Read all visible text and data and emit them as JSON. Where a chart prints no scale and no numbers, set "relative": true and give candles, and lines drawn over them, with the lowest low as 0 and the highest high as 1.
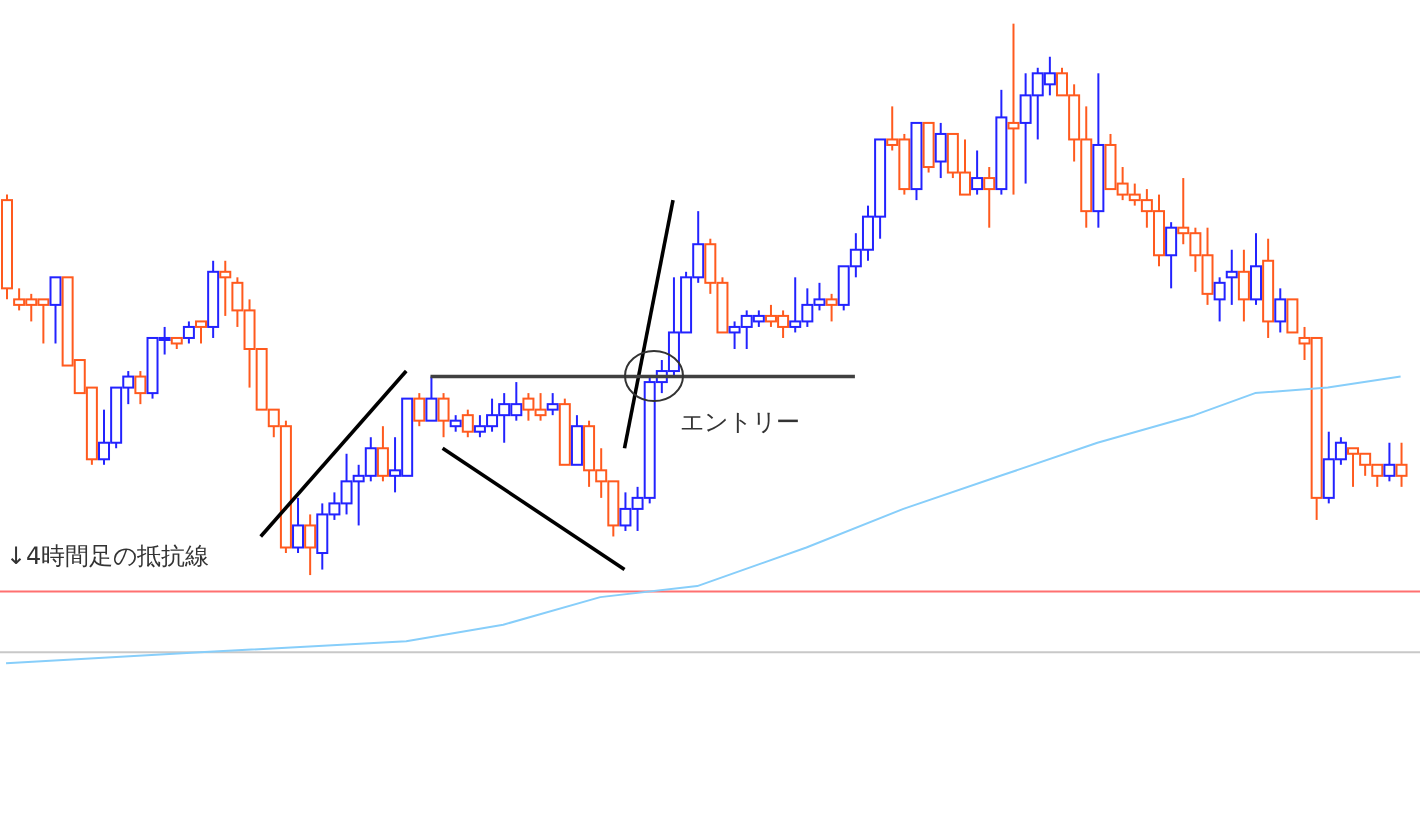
{
  "chart_data": {
    "type": "candlestick",
    "relative": true,
    "legend": false,
    "grid": false,
    "categories": [
      null,
      null,
      null,
      null,
      null,
      null,
      null,
      null,
      null,
      null,
      null,
      null,
      null,
      null,
      null,
      null,
      null,
      null,
      null,
      null,
      null,
      null,
      null,
      null,
      null,
      null,
      null,
      null,
      null,
      null,
      null,
      null,
      null,
      null,
      null,
      null,
      null,
      null,
      null,
      null,
      null,
      null,
      null,
      null,
      null,
      null,
      null,
      null,
      null,
      null,
      null,
      null,
      null,
      null,
      null,
      null,
      null,
      null,
      null,
      null,
      null,
      null,
      null,
      null,
      null,
      null,
      null,
      null,
      null,
      null,
      null,
      null,
      null,
      null,
      null,
      null,
      null,
      null,
      null,
      null,
      null,
      null,
      null,
      null,
      null,
      null,
      null,
      null,
      null,
      null,
      null,
      null,
      null,
      null,
      null,
      null,
      null,
      null,
      null,
      null,
      null,
      null,
      null,
      null,
      null,
      null,
      null,
      null,
      null,
      null,
      null,
      null,
      null,
      null,
      null,
      null
    ],
    "ohlc": [
      [
        0.68,
        0.69,
        0.5,
        0.52
      ],
      [
        0.5,
        0.52,
        0.48,
        0.49
      ],
      [
        0.5,
        0.51,
        0.46,
        0.49
      ],
      [
        0.5,
        0.5,
        0.42,
        0.49
      ],
      [
        0.49,
        0.54,
        0.42,
        0.54
      ],
      [
        0.54,
        0.54,
        0.38,
        0.38
      ],
      [
        0.39,
        0.39,
        0.33,
        0.33
      ],
      [
        0.34,
        0.34,
        0.2,
        0.21
      ],
      [
        0.21,
        0.3,
        0.2,
        0.24
      ],
      [
        0.24,
        0.34,
        0.23,
        0.34
      ],
      [
        0.34,
        0.37,
        0.31,
        0.36
      ],
      [
        0.36,
        0.37,
        0.31,
        0.33
      ],
      [
        0.33,
        0.43,
        0.32,
        0.43
      ],
      [
        0.43,
        0.45,
        0.4,
        0.43
      ],
      [
        0.43,
        0.43,
        0.41,
        0.42
      ],
      [
        0.43,
        0.46,
        0.42,
        0.45
      ],
      [
        0.46,
        0.46,
        0.42,
        0.45
      ],
      [
        0.45,
        0.57,
        0.43,
        0.55
      ],
      [
        0.55,
        0.57,
        0.47,
        0.54
      ],
      [
        0.53,
        0.54,
        0.45,
        0.48
      ],
      [
        0.48,
        0.5,
        0.34,
        0.41
      ],
      [
        0.41,
        0.41,
        0.3,
        0.3
      ],
      [
        0.3,
        0.3,
        0.25,
        0.27
      ],
      [
        0.27,
        0.28,
        0.04,
        0.05
      ],
      [
        0.05,
        0.14,
        0.04,
        0.09
      ],
      [
        0.09,
        0.11,
        0.0,
        0.05
      ],
      [
        0.04,
        0.13,
        0.01,
        0.11
      ],
      [
        0.11,
        0.15,
        0.1,
        0.13
      ],
      [
        0.13,
        0.22,
        0.11,
        0.17
      ],
      [
        0.17,
        0.2,
        0.09,
        0.18
      ],
      [
        0.18,
        0.25,
        0.17,
        0.23
      ],
      [
        0.23,
        0.27,
        0.17,
        0.18
      ],
      [
        0.18,
        0.25,
        0.15,
        0.19
      ],
      [
        0.18,
        0.32,
        0.18,
        0.32
      ],
      [
        0.32,
        0.33,
        0.27,
        0.28
      ],
      [
        0.28,
        0.36,
        0.28,
        0.32
      ],
      [
        0.32,
        0.33,
        0.25,
        0.28
      ],
      [
        0.27,
        0.29,
        0.26,
        0.28
      ],
      [
        0.29,
        0.3,
        0.25,
        0.26
      ],
      [
        0.26,
        0.29,
        0.25,
        0.27
      ],
      [
        0.27,
        0.32,
        0.26,
        0.29
      ],
      [
        0.29,
        0.33,
        0.24,
        0.31
      ],
      [
        0.29,
        0.35,
        0.28,
        0.31
      ],
      [
        0.32,
        0.33,
        0.28,
        0.3
      ],
      [
        0.3,
        0.33,
        0.28,
        0.29
      ],
      [
        0.3,
        0.33,
        0.29,
        0.31
      ],
      [
        0.31,
        0.32,
        0.2,
        0.2
      ],
      [
        0.2,
        0.29,
        0.2,
        0.27
      ],
      [
        0.27,
        0.28,
        0.16,
        0.19
      ],
      [
        0.19,
        0.23,
        0.14,
        0.17
      ],
      [
        0.17,
        0.17,
        0.07,
        0.09
      ],
      [
        0.09,
        0.15,
        0.08,
        0.12
      ],
      [
        0.12,
        0.16,
        0.08,
        0.14
      ],
      [
        0.14,
        0.36,
        0.13,
        0.35
      ],
      [
        0.35,
        0.39,
        0.33,
        0.37
      ],
      [
        0.37,
        0.54,
        0.36,
        0.44
      ],
      [
        0.44,
        0.55,
        0.44,
        0.54
      ],
      [
        0.54,
        0.66,
        0.53,
        0.6
      ],
      [
        0.6,
        0.61,
        0.51,
        0.53
      ],
      [
        0.53,
        0.54,
        0.44,
        0.44
      ],
      [
        0.44,
        0.46,
        0.41,
        0.45
      ],
      [
        0.45,
        0.48,
        0.41,
        0.47
      ],
      [
        0.46,
        0.48,
        0.45,
        0.47
      ],
      [
        0.47,
        0.49,
        0.45,
        0.46
      ],
      [
        0.47,
        0.48,
        0.43,
        0.45
      ],
      [
        0.45,
        0.54,
        0.44,
        0.46
      ],
      [
        0.46,
        0.52,
        0.45,
        0.49
      ],
      [
        0.49,
        0.53,
        0.48,
        0.5
      ],
      [
        0.5,
        0.51,
        0.46,
        0.49
      ],
      [
        0.49,
        0.56,
        0.48,
        0.56
      ],
      [
        0.56,
        0.62,
        0.54,
        0.59
      ],
      [
        0.59,
        0.67,
        0.57,
        0.65
      ],
      [
        0.65,
        0.79,
        0.61,
        0.79
      ],
      [
        0.79,
        0.85,
        0.77,
        0.78
      ],
      [
        0.79,
        0.8,
        0.69,
        0.7
      ],
      [
        0.7,
        0.82,
        0.68,
        0.82
      ],
      [
        0.82,
        0.82,
        0.73,
        0.74
      ],
      [
        0.75,
        0.82,
        0.72,
        0.8
      ],
      [
        0.8,
        0.8,
        0.72,
        0.73
      ],
      [
        0.73,
        0.79,
        0.69,
        0.69
      ],
      [
        0.7,
        0.77,
        0.69,
        0.72
      ],
      [
        0.72,
        0.74,
        0.63,
        0.7
      ],
      [
        0.7,
        0.88,
        0.69,
        0.83
      ],
      [
        0.82,
        1.0,
        0.69,
        0.81
      ],
      [
        0.82,
        0.91,
        0.71,
        0.87
      ],
      [
        0.87,
        0.92,
        0.79,
        0.91
      ],
      [
        0.89,
        0.94,
        0.87,
        0.91
      ],
      [
        0.91,
        0.92,
        0.87,
        0.87
      ],
      [
        0.87,
        0.89,
        0.75,
        0.79
      ],
      [
        0.79,
        0.85,
        0.63,
        0.66
      ],
      [
        0.66,
        0.91,
        0.63,
        0.78
      ],
      [
        0.78,
        0.8,
        0.7,
        0.7
      ],
      [
        0.71,
        0.74,
        0.68,
        0.69
      ],
      [
        0.69,
        0.71,
        0.67,
        0.68
      ],
      [
        0.68,
        0.7,
        0.63,
        0.66
      ],
      [
        0.66,
        0.69,
        0.56,
        0.58
      ],
      [
        0.58,
        0.64,
        0.52,
        0.63
      ],
      [
        0.63,
        0.72,
        0.6,
        0.62
      ],
      [
        0.62,
        0.63,
        0.55,
        0.58
      ],
      [
        0.58,
        0.63,
        0.49,
        0.51
      ],
      [
        0.5,
        0.54,
        0.46,
        0.53
      ],
      [
        0.54,
        0.59,
        0.49,
        0.55
      ],
      [
        0.55,
        0.59,
        0.46,
        0.5
      ],
      [
        0.5,
        0.62,
        0.49,
        0.56
      ],
      [
        0.57,
        0.61,
        0.43,
        0.46
      ],
      [
        0.46,
        0.52,
        0.44,
        0.5
      ],
      [
        0.5,
        0.5,
        0.44,
        0.44
      ],
      [
        0.43,
        0.45,
        0.39,
        0.42
      ],
      [
        0.43,
        0.43,
        0.1,
        0.14
      ],
      [
        0.14,
        0.26,
        0.13,
        0.21
      ],
      [
        0.21,
        0.25,
        0.2,
        0.24
      ],
      [
        0.23,
        0.23,
        0.16,
        0.22
      ],
      [
        0.22,
        0.22,
        0.18,
        0.2
      ],
      [
        0.2,
        0.2,
        0.16,
        0.18
      ],
      [
        0.18,
        0.24,
        0.17,
        0.2
      ],
      [
        0.2,
        0.24,
        0.16,
        0.18
      ]
    ],
    "colors": [
      "#ff5a1e",
      "#ff5a1e",
      "#ff5a1e",
      "#ff5a1e",
      "#2323ff",
      "#ff5a1e",
      "#ff5a1e",
      "#ff5a1e",
      "#2323ff",
      "#2323ff",
      "#2323ff",
      "#ff5a1e",
      "#2323ff",
      "#2323ff",
      "#ff5a1e",
      "#2323ff",
      "#ff5a1e",
      "#2323ff",
      "#ff5a1e",
      "#ff5a1e",
      "#ff5a1e",
      "#ff5a1e",
      "#ff5a1e",
      "#ff5a1e",
      "#2323ff",
      "#ff5a1e",
      "#2323ff",
      "#2323ff",
      "#2323ff",
      "#2323ff",
      "#2323ff",
      "#ff5a1e",
      "#2323ff",
      "#2323ff",
      "#ff5a1e",
      "#2323ff",
      "#ff5a1e",
      "#2323ff",
      "#ff5a1e",
      "#2323ff",
      "#2323ff",
      "#2323ff",
      "#2323ff",
      "#ff5a1e",
      "#ff5a1e",
      "#2323ff",
      "#ff5a1e",
      "#2323ff",
      "#ff5a1e",
      "#ff5a1e",
      "#ff5a1e",
      "#2323ff",
      "#2323ff",
      "#2323ff",
      "#2323ff",
      "#2323ff",
      "#2323ff",
      "#2323ff",
      "#ff5a1e",
      "#ff5a1e",
      "#2323ff",
      "#2323ff",
      "#2323ff",
      "#ff5a1e",
      "#ff5a1e",
      "#2323ff",
      "#2323ff",
      "#2323ff",
      "#ff5a1e",
      "#2323ff",
      "#2323ff",
      "#2323ff",
      "#2323ff",
      "#ff5a1e",
      "#ff5a1e",
      "#2323ff",
      "#ff5a1e",
      "#2323ff",
      "#ff5a1e",
      "#ff5a1e",
      "#2323ff",
      "#ff5a1e",
      "#2323ff",
      "#ff5a1e",
      "#2323ff",
      "#2323ff",
      "#2323ff",
      "#ff5a1e",
      "#ff5a1e",
      "#ff5a1e",
      "#2323ff",
      "#ff5a1e",
      "#ff5a1e",
      "#ff5a1e",
      "#ff5a1e",
      "#ff5a1e",
      "#2323ff",
      "#ff5a1e",
      "#ff5a1e",
      "#ff5a1e",
      "#2323ff",
      "#2323ff",
      "#ff5a1e",
      "#2323ff",
      "#ff5a1e",
      "#2323ff",
      "#ff5a1e",
      "#ff5a1e",
      "#ff5a1e",
      "#2323ff",
      "#2323ff",
      "#ff5a1e",
      "#ff5a1e",
      "#ff5a1e",
      "#2323ff",
      "#ff5a1e"
    ],
    "series": [
      {
        "type": "line",
        "color": "#87cefa",
        "values": [
          -0.16,
          null,
          null,
          null,
          null,
          null,
          null,
          null,
          null,
          null,
          null,
          null,
          null,
          null,
          null,
          null,
          -0.14,
          null,
          null,
          null,
          null,
          null,
          null,
          null,
          null,
          null,
          null,
          null,
          null,
          null,
          null,
          null,
          null,
          -0.12,
          null,
          null,
          null,
          null,
          null,
          null,
          null,
          -0.09,
          null,
          null,
          null,
          null,
          null,
          null,
          null,
          -0.04,
          null,
          null,
          null,
          null,
          null,
          null,
          null,
          -0.02,
          null,
          null,
          null,
          null,
          null,
          null,
          null,
          null,
          0.05,
          null,
          null,
          null,
          null,
          null,
          null,
          null,
          0.12,
          null,
          null,
          null,
          null,
          null,
          null,
          null,
          0.18,
          null,
          null,
          null,
          null,
          null,
          null,
          null,
          0.24,
          null,
          null,
          null,
          null,
          null,
          null,
          null,
          0.29,
          null,
          null,
          null,
          null,
          0.33,
          null,
          null,
          null,
          null,
          null,
          0.34,
          null,
          null,
          null,
          null,
          null,
          0.36
        ]
      },
      {
        "type": "line",
        "color": "#000000",
        "values": [
          null,
          null,
          null,
          null,
          null,
          null,
          null,
          null,
          null,
          null,
          null,
          null,
          null,
          null,
          null,
          null,
          null,
          null,
          null,
          null,
          null,
          0.07,
          null,
          null,
          null,
          null,
          null,
          null,
          null,
          null,
          null,
          null,
          null,
          0.37,
          null,
          null,
          null,
          null,
          null,
          null,
          null,
          null,
          null,
          null,
          null,
          null,
          null,
          null,
          null,
          null,
          null,
          null,
          null,
          null,
          null,
          null,
          null,
          null,
          null,
          null,
          null,
          null,
          null,
          null,
          null,
          null,
          null,
          null,
          null,
          null,
          null,
          null,
          null,
          null,
          null,
          null,
          null,
          null,
          null,
          null,
          null,
          null,
          null,
          null,
          null,
          null,
          null,
          null,
          null,
          null,
          null,
          null,
          null,
          null,
          null,
          null,
          null,
          null,
          null,
          null,
          null,
          null,
          null,
          null,
          null,
          null,
          null,
          null,
          null,
          null,
          null,
          null,
          null,
          null,
          null,
          null
        ]
      },
      {
        "type": "line",
        "color": "#000000",
        "values": [
          null,
          null,
          null,
          null,
          null,
          null,
          null,
          null,
          null,
          null,
          null,
          null,
          null,
          null,
          null,
          null,
          null,
          null,
          null,
          null,
          null,
          null,
          null,
          null,
          null,
          null,
          null,
          null,
          null,
          null,
          null,
          null,
          null,
          null,
          null,
          null,
          0.23,
          null,
          null,
          null,
          null,
          null,
          null,
          null,
          null,
          null,
          null,
          null,
          null,
          null,
          null,
          0.01,
          null,
          null,
          null,
          null,
          null,
          null,
          null,
          null,
          null,
          null,
          null,
          null,
          null,
          null,
          null,
          null,
          null,
          null,
          null,
          null,
          null,
          null,
          null,
          null,
          null,
          null,
          null,
          null,
          null,
          null,
          null,
          null,
          null,
          null,
          null,
          null,
          null,
          null,
          null,
          null,
          null,
          null,
          null,
          null,
          null,
          null,
          null,
          null,
          null,
          null,
          null,
          null,
          null,
          null,
          null,
          null,
          null,
          null,
          null,
          null,
          null,
          null,
          null,
          null
        ]
      },
      {
        "type": "line",
        "color": "#000000",
        "values": [
          null,
          null,
          null,
          null,
          null,
          null,
          null,
          null,
          null,
          null,
          null,
          null,
          null,
          null,
          null,
          null,
          null,
          null,
          null,
          null,
          null,
          null,
          null,
          null,
          null,
          null,
          null,
          null,
          null,
          null,
          null,
          null,
          null,
          null,
          null,
          null,
          null,
          null,
          null,
          null,
          null,
          null,
          null,
          null,
          null,
          null,
          null,
          null,
          null,
          null,
          null,
          0.23,
          null,
          null,
          null,
          0.68,
          null,
          null,
          null,
          null,
          null,
          null,
          null,
          null,
          null,
          null,
          null,
          null,
          null,
          null,
          null,
          null,
          null,
          null,
          null,
          null,
          null,
          null,
          null,
          null,
          null,
          null,
          null,
          null,
          null,
          null,
          null,
          null,
          null,
          null,
          null,
          null,
          null,
          null,
          null,
          null,
          null,
          null,
          null,
          null,
          null,
          null,
          null,
          null,
          null,
          null,
          null,
          null,
          null,
          null,
          null,
          null,
          null,
          null,
          null,
          null
        ]
      },
      {
        "type": "line",
        "color": "#404040",
        "values": [
          null,
          null,
          null,
          null,
          null,
          null,
          null,
          null,
          null,
          null,
          null,
          null,
          null,
          null,
          null,
          null,
          null,
          null,
          null,
          null,
          null,
          null,
          null,
          null,
          null,
          null,
          null,
          null,
          null,
          null,
          null,
          null,
          null,
          null,
          null,
          0.36,
          null,
          null,
          null,
          null,
          null,
          null,
          null,
          null,
          null,
          null,
          null,
          null,
          null,
          null,
          null,
          null,
          null,
          null,
          null,
          null,
          null,
          null,
          null,
          null,
          null,
          null,
          null,
          null,
          null,
          null,
          null,
          null,
          null,
          null,
          0.36,
          null,
          null,
          null,
          null,
          null,
          null,
          null,
          null,
          null,
          null,
          null,
          null,
          null,
          null,
          null,
          null,
          null,
          null,
          null,
          null,
          null,
          null,
          null,
          null,
          null,
          null,
          null,
          null,
          null,
          null,
          null,
          null,
          null,
          null,
          null,
          null,
          null,
          null,
          null,
          null,
          null,
          null,
          null,
          null,
          null
        ]
      }
    ],
    "ref_lines": [
      {
        "axis": "y",
        "value": -0.03,
        "color": "#ff7070"
      },
      {
        "axis": "y",
        "value": -0.14,
        "color": "#c8c8c8"
      }
    ],
    "annotations": [
      "エントリー",
      "↓4時間足の抵抗線"
    ]
  }
}
